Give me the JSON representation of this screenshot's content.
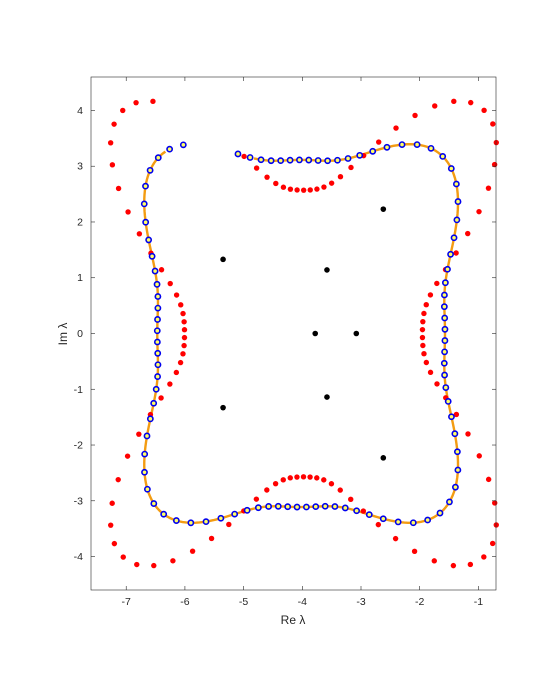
{
  "chart_data": {
    "type": "scatter",
    "title": "",
    "xlabel": "Re λ",
    "ylabel": "Im λ",
    "xlim": [
      -7.6,
      -0.7
    ],
    "ylim": [
      -4.6,
      4.6
    ],
    "x_ticks": [
      -7,
      -6,
      -5,
      -4,
      -3,
      -2,
      -1
    ],
    "y_ticks": [
      -4,
      -3,
      -2,
      -1,
      0,
      1,
      2,
      3,
      4
    ],
    "x_tick_labels": [
      "-7",
      "-6",
      "-5",
      "-4",
      "-3",
      "-2",
      "-1"
    ],
    "y_tick_labels": [
      "-4",
      "-3",
      "-2",
      "-1",
      "0",
      "1",
      "2",
      "3",
      "4"
    ],
    "grid": false,
    "box": true,
    "series": [
      {
        "style": "orange-curve",
        "color": "#f39c12",
        "curve": {
          "center": [
            -4.02,
            0.0
          ],
          "a": 2.85,
          "b": 3.62,
          "ripple_r": 0.18,
          "ripple_r2": 0.04,
          "from_deg": 72,
          "to_deg": 408
        }
      },
      {
        "style": "red-points",
        "color": "#ff0000",
        "count": 110,
        "curve": {
          "center": [
            -3.98,
            0.0
          ],
          "a": 2.98,
          "b": 3.78,
          "ripple_r": 0.4,
          "ripple_r2": 0.08,
          "from_deg": 68,
          "to_deg": 412
        }
      },
      {
        "style": "blue-ring-points",
        "color": "#0000ee",
        "fill": "#ffff66",
        "count": 94,
        "curve": {
          "center": [
            -4.02,
            0.0
          ],
          "a": 2.85,
          "b": 3.62,
          "ripple_r": 0.18,
          "ripple_r2": 0.04,
          "from_deg": 67,
          "to_deg": 413
        }
      },
      {
        "style": "black-points",
        "color": "#000000",
        "points": [
          [
            -2.62,
            2.23
          ],
          [
            -2.62,
            -2.23
          ],
          [
            -3.58,
            1.14
          ],
          [
            -3.58,
            -1.14
          ],
          [
            -5.35,
            1.33
          ],
          [
            -5.35,
            -1.33
          ],
          [
            -3.78,
            0.0
          ],
          [
            -3.08,
            0.0
          ]
        ]
      }
    ]
  }
}
